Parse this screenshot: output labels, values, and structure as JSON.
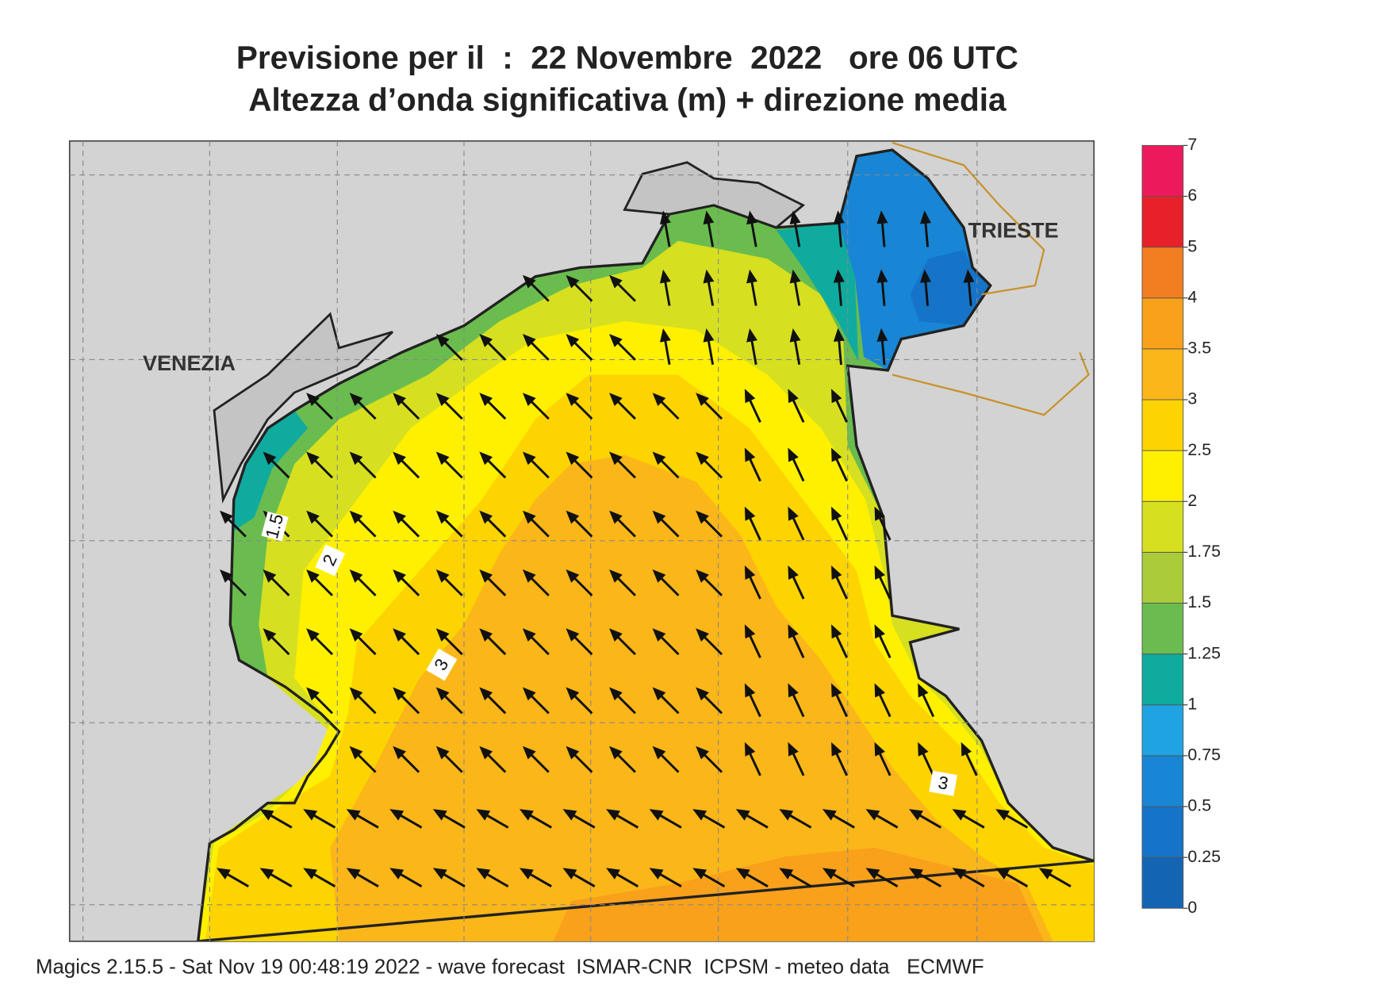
{
  "title": [
    "Previsione per il  :  22 Novembre  2022   ore 06 UTC",
    "Altezza d’onda significativa (m) + direzione media"
  ],
  "places": [
    "VENEZIA",
    "TRIESTE"
  ],
  "contour_labels": [
    "1.5",
    "2",
    "3",
    "3"
  ],
  "colorbar": {
    "ticks": [
      0,
      0.25,
      0.5,
      0.75,
      1,
      1.25,
      1.5,
      1.75,
      2,
      2.5,
      3,
      3.5,
      4,
      5,
      6,
      7
    ],
    "colors": [
      "#1464b4",
      "#1574c8",
      "#1886d4",
      "#1fa3e3",
      "#10ab9f",
      "#6abc4e",
      "#a9cc38",
      "#d6e020",
      "#fff000",
      "#fdd300",
      "#fbb619",
      "#f9a11b",
      "#f37e21",
      "#e8202a",
      "#ec1a5c"
    ]
  },
  "footer": "Magics 2.15.5 - Sat Nov 19 00:48:19 2022 - wave forecast  ISMAR-CNR  ICPSM - meteo data   ECMWF"
}
